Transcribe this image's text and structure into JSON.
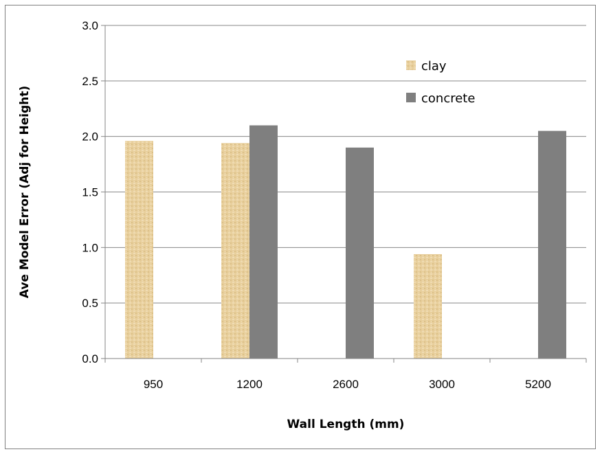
{
  "chart_data": {
    "type": "bar",
    "categories": [
      "950",
      "1200",
      "2600",
      "3000",
      "5200"
    ],
    "series": [
      {
        "name": "clay",
        "values": [
          1.96,
          1.94,
          null,
          0.94,
          null
        ],
        "color": "#e6cc96"
      },
      {
        "name": "concrete",
        "values": [
          null,
          2.1,
          1.9,
          null,
          2.05
        ],
        "color": "#7f7f7f"
      }
    ],
    "title": "",
    "xlabel": "Wall Length (mm)",
    "ylabel": "Ave Model Error (Adj for Height)",
    "ylim": [
      0,
      3.0
    ],
    "yticks": [
      "0.0",
      "0.5",
      "1.0",
      "1.5",
      "2.0",
      "2.5",
      "3.0"
    ],
    "grid": true,
    "legend_position": "top-right"
  }
}
